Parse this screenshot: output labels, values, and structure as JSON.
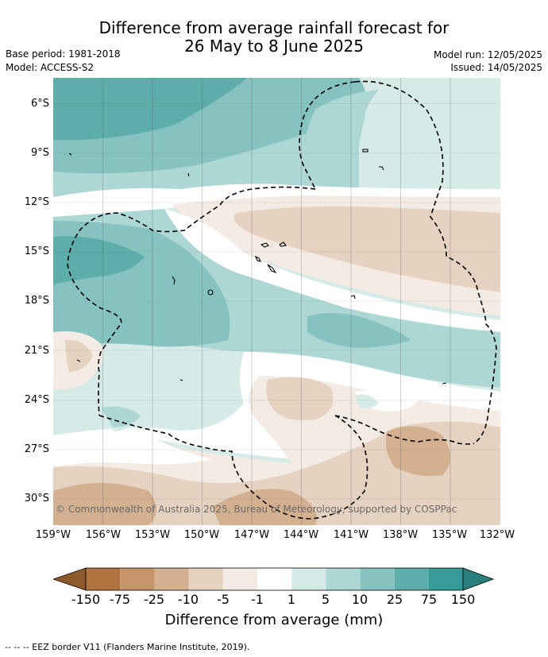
{
  "title_line1": "Difference from average rainfall forecast for",
  "title_line2": "26 May to 8 June 2025",
  "base_period": "Base period: 1981-2018",
  "model": "Model: ACCESS-S2",
  "model_run": "Model run: 12/05/2025",
  "issued": "Issued: 14/05/2025",
  "lat_labels": [
    "6°S",
    "9°S",
    "12°S",
    "15°S",
    "18°S",
    "21°S",
    "24°S",
    "27°S",
    "30°S"
  ],
  "lon_labels": [
    "159°W",
    "156°W",
    "153°W",
    "150°W",
    "147°W",
    "144°W",
    "141°W",
    "138°W",
    "135°W",
    "132°W"
  ],
  "copyright": "© Commonwealth of Australia 2025, Bureau of Meteorology, supported by COSPPac",
  "colorbar": {
    "ticks": [
      "-150",
      "-75",
      "-25",
      "-10",
      "-5",
      "-1",
      "1",
      "5",
      "10",
      "25",
      "75",
      "150"
    ],
    "colors": [
      "#8c5a2b",
      "#b07440",
      "#c4946b",
      "#d3b08f",
      "#e5d2c0",
      "#f4ebe4",
      "#ffffff",
      "#d6eae8",
      "#add7d5",
      "#85c2c0",
      "#5dadab",
      "#379b98",
      "#2a7f7d"
    ],
    "label": "Difference from average (mm)"
  },
  "legend_footnote": "-- -- -- EEZ border V11 (Flanders Marine Institute, 2019)."
}
